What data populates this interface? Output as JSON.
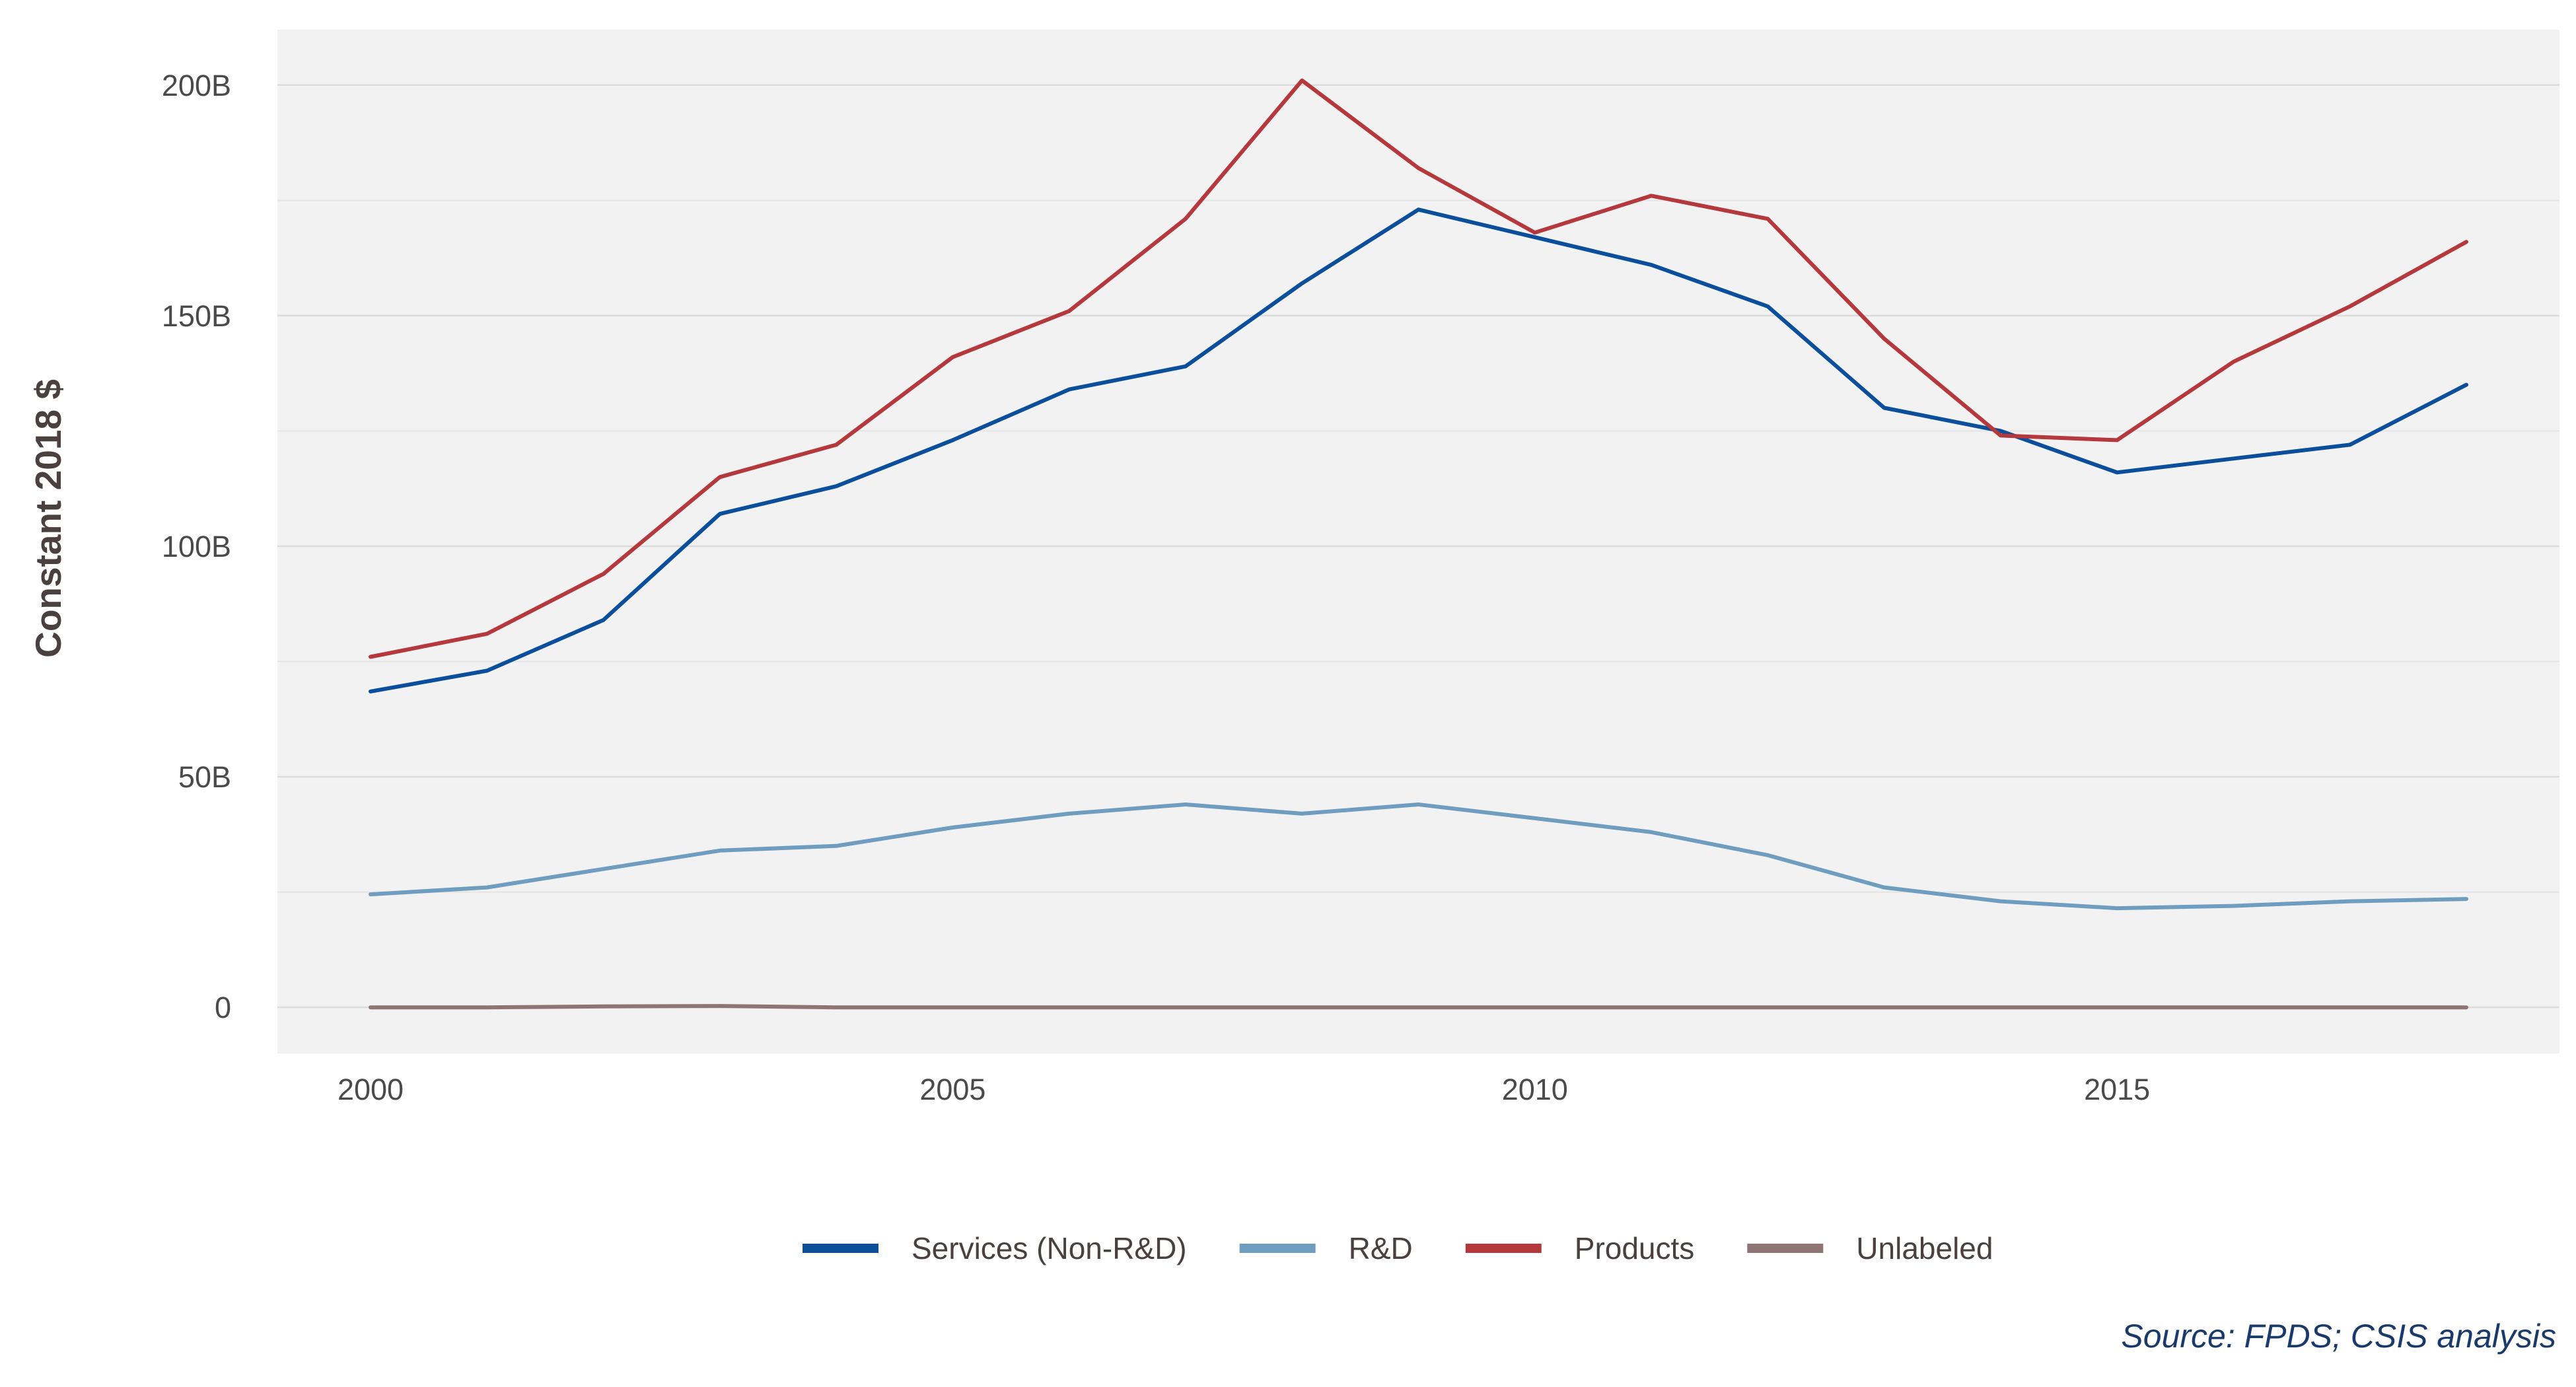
{
  "chart_data": {
    "type": "line",
    "ylabel": "Constant 2018 $",
    "xlabel": "",
    "x": [
      2000,
      2001,
      2002,
      2003,
      2004,
      2005,
      2006,
      2007,
      2008,
      2009,
      2010,
      2011,
      2012,
      2013,
      2014,
      2015,
      2016,
      2017,
      2018
    ],
    "xlim": [
      1999.2,
      2018.8
    ],
    "ylim": [
      -10,
      212
    ],
    "x_ticks": [
      2000,
      2005,
      2010,
      2015
    ],
    "x_tick_labels": [
      "2000",
      "2005",
      "2010",
      "2015"
    ],
    "y_ticks": [
      0,
      50,
      100,
      150,
      200
    ],
    "y_tick_labels": [
      "0",
      "50B",
      "100B",
      "150B",
      "200B"
    ],
    "y_minor_ticks": [
      25,
      75,
      125,
      175
    ],
    "grid": true,
    "legend_position": "bottom",
    "series": [
      {
        "name": "Services (Non-R&D)",
        "color": "#0b4f9c",
        "values": [
          68.5,
          73,
          84,
          107,
          113,
          123,
          134,
          139,
          157,
          173,
          167,
          161,
          152,
          130,
          125,
          116,
          119,
          122,
          135
        ]
      },
      {
        "name": "R&D",
        "color": "#6e9dc0",
        "values": [
          24.5,
          26,
          30,
          34,
          35,
          39,
          42,
          44,
          42,
          44,
          41,
          38,
          33,
          26,
          23,
          21.5,
          22,
          23,
          23.5
        ]
      },
      {
        "name": "Products",
        "color": "#b5383d",
        "values": [
          76,
          81,
          94,
          115,
          122,
          141,
          151,
          171,
          201,
          182,
          168,
          176,
          171,
          145,
          124,
          123,
          140,
          152,
          166
        ]
      },
      {
        "name": "Unlabeled",
        "color": "#8f7474",
        "values": [
          0,
          0,
          0.2,
          0.3,
          0,
          0,
          0,
          0,
          0,
          0,
          0,
          0,
          0,
          0,
          0,
          0,
          0,
          0,
          0
        ]
      }
    ]
  },
  "source": "Source: FPDS; CSIS analysis"
}
